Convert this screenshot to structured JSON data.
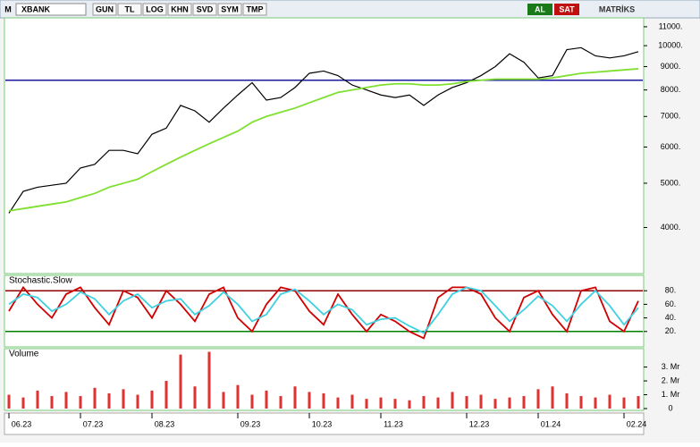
{
  "toolbar": {
    "logo": "M",
    "symbol": "XBANK",
    "buttons": [
      "GUN",
      "TL",
      "LOG",
      "KHN",
      "SVD",
      "SYM",
      "TMP"
    ],
    "buy": "AL",
    "sell": "SAT",
    "brand": "MATRİKS"
  },
  "chart_data": [
    {
      "type": "line",
      "log_scale": true,
      "ylim": [
        3200,
        11400
      ],
      "yticks": [
        {
          "value": 4000,
          "label": "4000."
        },
        {
          "value": 5000,
          "label": "5000."
        },
        {
          "value": 6000,
          "label": "6000."
        },
        {
          "value": 7000,
          "label": "7000."
        },
        {
          "value": 8000,
          "label": "8000."
        },
        {
          "value": 9000,
          "label": "9000."
        },
        {
          "value": 10000,
          "label": "10000."
        },
        {
          "value": 11000,
          "label": "11000."
        }
      ],
      "hlines": [
        {
          "value": 8400,
          "color": "#1a1aa0"
        }
      ],
      "series": [
        {
          "color": "#000000",
          "values": [
            4300,
            4800,
            4900,
            4950,
            5000,
            5400,
            5500,
            5900,
            5900,
            5800,
            6400,
            6600,
            7400,
            7200,
            6800,
            7300,
            7800,
            8300,
            7600,
            7700,
            8100,
            8700,
            8800,
            8600,
            8200,
            8000,
            7800,
            7700,
            7800,
            7400,
            7800,
            8100,
            8300,
            8600,
            9000,
            9600,
            9200,
            8500,
            8600,
            9800,
            9900,
            9500,
            9400,
            9500,
            9700
          ]
        },
        {
          "color": "#7fe030",
          "values": [
            4350,
            4400,
            4450,
            4500,
            4550,
            4650,
            4750,
            4900,
            5000,
            5100,
            5300,
            5500,
            5700,
            5900,
            6100,
            6300,
            6500,
            6800,
            7000,
            7150,
            7300,
            7500,
            7700,
            7900,
            8000,
            8100,
            8200,
            8250,
            8250,
            8200,
            8200,
            8250,
            8350,
            8400,
            8450,
            8450,
            8450,
            8450,
            8500,
            8600,
            8700,
            8750,
            8800,
            8850,
            8900
          ]
        }
      ]
    },
    {
      "type": "line",
      "title": "Stochastic.Slow",
      "ylim": [
        0,
        100
      ],
      "yticks": [
        {
          "value": 20,
          "label": "20."
        },
        {
          "value": 40,
          "label": "40."
        },
        {
          "value": 60,
          "label": "60."
        },
        {
          "value": 80,
          "label": "80."
        }
      ],
      "hlines": [
        {
          "value": 80,
          "color": "#900000"
        },
        {
          "value": 20,
          "color": "#008000"
        }
      ],
      "series": [
        {
          "color": "#d00000",
          "values": [
            50,
            85,
            60,
            40,
            75,
            85,
            55,
            30,
            80,
            70,
            40,
            80,
            60,
            35,
            75,
            85,
            40,
            20,
            60,
            85,
            80,
            50,
            30,
            75,
            45,
            20,
            45,
            35,
            20,
            10,
            70,
            85,
            85,
            75,
            40,
            20,
            70,
            80,
            45,
            20,
            80,
            85,
            35,
            20,
            65
          ]
        },
        {
          "color": "#40d0e0",
          "values": [
            60,
            75,
            70,
            50,
            60,
            78,
            68,
            45,
            65,
            75,
            55,
            65,
            68,
            45,
            58,
            78,
            60,
            35,
            45,
            75,
            82,
            65,
            45,
            60,
            52,
            30,
            38,
            40,
            28,
            18,
            45,
            75,
            85,
            80,
            58,
            35,
            52,
            72,
            58,
            35,
            60,
            80,
            58,
            30,
            55
          ]
        }
      ]
    },
    {
      "type": "bar",
      "title": "Volume",
      "ylim": [
        0,
        4.2
      ],
      "color": "#e03030",
      "yticks": [
        0,
        {
          "value": 1,
          "label": "1. Mr"
        },
        {
          "value": 2,
          "label": "2. Mr"
        },
        {
          "value": 3,
          "label": "3. Mr"
        }
      ],
      "values": [
        1.0,
        0.8,
        1.3,
        0.9,
        1.2,
        0.9,
        1.5,
        1.1,
        1.4,
        1.0,
        1.3,
        2.0,
        3.9,
        1.6,
        4.1,
        1.2,
        1.7,
        1.0,
        1.3,
        0.9,
        1.6,
        1.2,
        1.1,
        0.8,
        1.0,
        0.7,
        0.8,
        0.7,
        0.6,
        0.9,
        0.8,
        1.2,
        0.9,
        1.0,
        0.7,
        0.8,
        0.9,
        1.4,
        1.6,
        1.1,
        0.9,
        0.8,
        1.0,
        0.8,
        0.9
      ],
      "xticks": [
        {
          "value": 0,
          "label": "06.23"
        },
        {
          "value": 5,
          "label": "07.23"
        },
        {
          "value": 10,
          "label": "08.23"
        },
        {
          "value": 16,
          "label": "09.23"
        },
        {
          "value": 21,
          "label": "10.23"
        },
        {
          "value": 26,
          "label": "11.23"
        },
        {
          "value": 32,
          "label": "12.23"
        },
        {
          "value": 37,
          "label": "01.24"
        },
        {
          "value": 43,
          "label": "02.24"
        }
      ]
    }
  ]
}
